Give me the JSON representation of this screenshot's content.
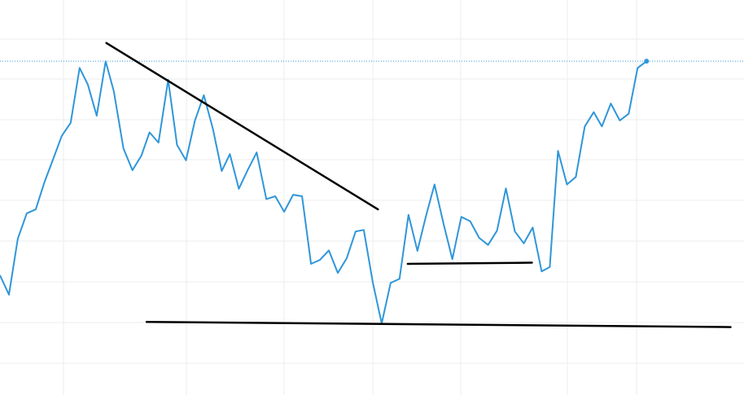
{
  "chart_data": {
    "type": "line",
    "grid": true,
    "colors": {
      "series": "#2f96da",
      "drawings": "#000000",
      "grid": "#ededed"
    },
    "xlim": [
      0,
      100
    ],
    "ylim": [
      0,
      100
    ],
    "series": [
      {
        "x": [
          0,
          1.2,
          2.4,
          3.6,
          4.8,
          6.0,
          7.2,
          8.3,
          9.5,
          10.7,
          11.8,
          13.0,
          14.2,
          15.3,
          16.6,
          17.8,
          19.0,
          20.1,
          21.3,
          22.6,
          23.8,
          25.0,
          26.2,
          27.4,
          28.6,
          29.8,
          30.9,
          32.1,
          33.3,
          34.5,
          35.8,
          37.0,
          38.2,
          39.4,
          40.6,
          41.8,
          43.0,
          44.2,
          45.4,
          46.6,
          47.8,
          48.9,
          50.1,
          51.3,
          52.5,
          53.7,
          54.9,
          56.1,
          57.3,
          58.4,
          59.6,
          60.8,
          62.0,
          63.2,
          64.4,
          65.6,
          66.8,
          68.0,
          69.2,
          70.4,
          71.6,
          72.8,
          73.9,
          75.0,
          76.2,
          77.4,
          78.6,
          79.8,
          80.9,
          82.1,
          83.3,
          84.5,
          85.7,
          86.9
        ],
        "y": [
          30.3,
          25.4,
          39.6,
          46.0,
          47.0,
          54.0,
          60.0,
          65.6,
          68.9,
          82.8,
          78.6,
          70.7,
          84.5,
          76.9,
          62.4,
          56.9,
          60.6,
          66.5,
          63.9,
          79.8,
          63.3,
          59.4,
          69.5,
          75.9,
          67.5,
          56.7,
          61.0,
          52.2,
          57.0,
          61.4,
          49.6,
          50.3,
          46.4,
          50.7,
          50.3,
          33.2,
          34.2,
          36.6,
          30.9,
          34.6,
          41.4,
          41.8,
          28.6,
          18.1,
          28.4,
          29.4,
          45.6,
          36.5,
          45.6,
          53.3,
          43.5,
          34.4,
          45.1,
          44.0,
          39.8,
          38.0,
          41.6,
          52.3,
          41.4,
          38.4,
          42.4,
          31.3,
          32.4,
          61.8,
          53.3,
          55.2,
          68.0,
          71.6,
          68.0,
          73.8,
          69.5,
          71.2,
          82.8,
          84.5
        ]
      }
    ],
    "last_value": 84.5,
    "drawings": [
      {
        "type": "trendline",
        "x1": 14.3,
        "y1": 89.1,
        "x2": 50.8,
        "y2": 47.0
      },
      {
        "type": "trendline",
        "x1": 19.7,
        "y1": 18.5,
        "x2": 98.2,
        "y2": 17.2
      },
      {
        "type": "trendline",
        "x1": 54.8,
        "y1": 33.2,
        "x2": 71.5,
        "y2": 33.5
      }
    ]
  }
}
